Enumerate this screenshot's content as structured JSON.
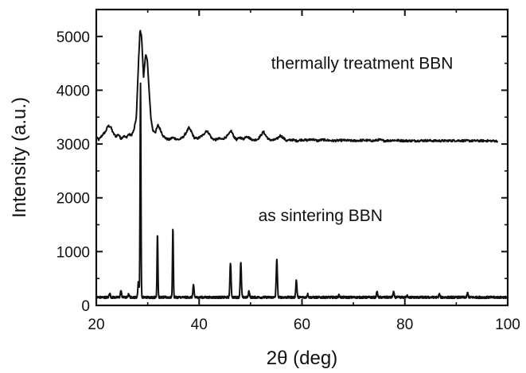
{
  "chart_data": {
    "type": "line",
    "xlabel": "2θ (deg)",
    "ylabel": "Intensity (a.u.)",
    "xlim": [
      20,
      100
    ],
    "ylim": [
      0,
      5500
    ],
    "xticks": [
      20,
      40,
      60,
      80,
      100
    ],
    "yticks": [
      0,
      1000,
      2000,
      3000,
      4000,
      5000
    ],
    "x_tick_labels": [
      "20",
      "40",
      "60",
      "80",
      "100"
    ],
    "y_tick_labels": [
      "0",
      "1000",
      "2000",
      "3000",
      "4000",
      "5000"
    ],
    "grid": false,
    "legend": "none",
    "annotations": [
      {
        "id": "upper",
        "text": "thermally treatment BBN"
      },
      {
        "id": "lower",
        "text": "as sintering BBN"
      }
    ],
    "series": [
      {
        "label_ref": "upper",
        "baseline": 3060,
        "x_start": 20,
        "x_end": 98,
        "points": [
          [
            20,
            3120
          ],
          [
            20.5,
            3080
          ],
          [
            21.2,
            3170
          ],
          [
            21.8,
            3230
          ],
          [
            22.3,
            3340
          ],
          [
            22.8,
            3320
          ],
          [
            23.3,
            3200
          ],
          [
            23.8,
            3140
          ],
          [
            24.3,
            3180
          ],
          [
            24.8,
            3100
          ],
          [
            25.3,
            3150
          ],
          [
            25.8,
            3120
          ],
          [
            26.3,
            3180
          ],
          [
            26.8,
            3160
          ],
          [
            27.3,
            3250
          ],
          [
            27.8,
            3500
          ],
          [
            28.2,
            4500
          ],
          [
            28.5,
            5120
          ],
          [
            28.8,
            5000
          ],
          [
            29.2,
            4250
          ],
          [
            29.6,
            4650
          ],
          [
            29.9,
            4600
          ],
          [
            30.2,
            4100
          ],
          [
            30.6,
            3500
          ],
          [
            31.0,
            3250
          ],
          [
            31.5,
            3220
          ],
          [
            32.0,
            3350
          ],
          [
            32.4,
            3280
          ],
          [
            33.0,
            3150
          ],
          [
            33.6,
            3100
          ],
          [
            34.2,
            3080
          ],
          [
            34.8,
            3120
          ],
          [
            35.4,
            3100
          ],
          [
            36.0,
            3080
          ],
          [
            36.8,
            3120
          ],
          [
            37.4,
            3200
          ],
          [
            38.0,
            3300
          ],
          [
            38.5,
            3230
          ],
          [
            39.0,
            3120
          ],
          [
            39.6,
            3100
          ],
          [
            40.2,
            3130
          ],
          [
            40.8,
            3170
          ],
          [
            41.4,
            3250
          ],
          [
            41.9,
            3200
          ],
          [
            42.5,
            3100
          ],
          [
            43.2,
            3080
          ],
          [
            43.8,
            3100
          ],
          [
            44.5,
            3090
          ],
          [
            45.2,
            3130
          ],
          [
            45.8,
            3180
          ],
          [
            46.2,
            3250
          ],
          [
            46.7,
            3150
          ],
          [
            47.2,
            3080
          ],
          [
            48.0,
            3120
          ],
          [
            48.6,
            3090
          ],
          [
            49.2,
            3150
          ],
          [
            49.8,
            3110
          ],
          [
            50.6,
            3070
          ],
          [
            51.4,
            3090
          ],
          [
            52.0,
            3160
          ],
          [
            52.5,
            3230
          ],
          [
            53.0,
            3150
          ],
          [
            53.6,
            3080
          ],
          [
            54.4,
            3070
          ],
          [
            55.2,
            3100
          ],
          [
            55.8,
            3160
          ],
          [
            56.3,
            3120
          ],
          [
            57.0,
            3060
          ],
          [
            58.0,
            3080
          ],
          [
            59.0,
            3060
          ],
          [
            60.0,
            3080
          ],
          [
            61.0,
            3070
          ],
          [
            62.0,
            3090
          ],
          [
            63.0,
            3060
          ],
          [
            64.0,
            3080
          ],
          [
            66.0,
            3060
          ],
          [
            68.0,
            3070
          ],
          [
            70.0,
            3060
          ],
          [
            72.0,
            3070
          ],
          [
            74.0,
            3060
          ],
          [
            75.0,
            3080
          ],
          [
            76.0,
            3060
          ],
          [
            78.0,
            3070
          ],
          [
            80.0,
            3060
          ],
          [
            82.0,
            3060
          ],
          [
            84.0,
            3065
          ],
          [
            86.0,
            3060
          ],
          [
            88.0,
            3060
          ],
          [
            90.0,
            3065
          ],
          [
            92.0,
            3060
          ],
          [
            94.0,
            3060
          ],
          [
            96.0,
            3060
          ],
          [
            98.0,
            3055
          ]
        ]
      },
      {
        "label_ref": "lower",
        "baseline": 150,
        "x_start": 20,
        "x_end": 100,
        "peaks": [
          [
            22.6,
            80
          ],
          [
            24.8,
            120
          ],
          [
            26.3,
            60
          ],
          [
            28.2,
            300
          ],
          [
            28.6,
            4000
          ],
          [
            31.9,
            1180
          ],
          [
            34.9,
            1280
          ],
          [
            38.9,
            220
          ],
          [
            46.1,
            640
          ],
          [
            48.1,
            640
          ],
          [
            49.7,
            120
          ],
          [
            55.1,
            700
          ],
          [
            58.9,
            320
          ],
          [
            61.1,
            60
          ],
          [
            67.2,
            40
          ],
          [
            74.6,
            100
          ],
          [
            77.8,
            100
          ],
          [
            80.5,
            30
          ],
          [
            86.7,
            60
          ],
          [
            92.2,
            80
          ]
        ]
      }
    ]
  }
}
